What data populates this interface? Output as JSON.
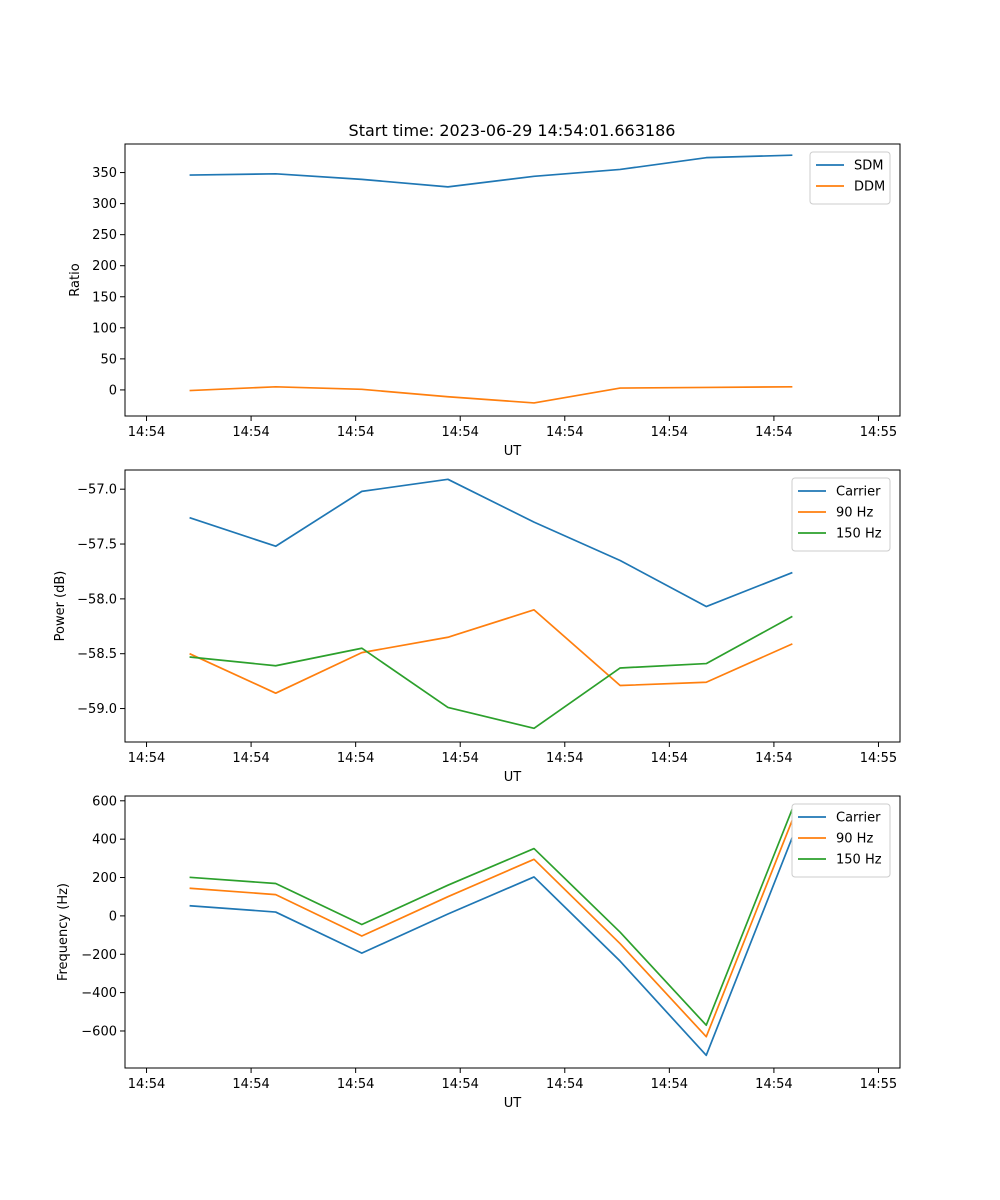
{
  "figure": {
    "title": "Start time: 2023-06-29 14:54:01.663186"
  },
  "chart_data": [
    {
      "type": "line",
      "title": "Start time: 2023-06-29 14:54:01.663186",
      "xlabel": "UT",
      "ylabel": "Ratio",
      "x_tick_labels": [
        "14:54",
        "14:54",
        "14:54",
        "14:54",
        "14:54",
        "14:54",
        "14:54",
        "14:55"
      ],
      "x": [
        1,
        2,
        3,
        4,
        5,
        6,
        7,
        8
      ],
      "xlim": [
        0.25,
        9.25
      ],
      "ylim": [
        -42,
        396
      ],
      "y_ticks": [
        0,
        50,
        100,
        150,
        200,
        250,
        300,
        350
      ],
      "legend_position": "upper right",
      "series": [
        {
          "name": "SDM",
          "color": "#1f77b4",
          "values": [
            346,
            348,
            339,
            327,
            344,
            355,
            374,
            378
          ]
        },
        {
          "name": "DDM",
          "color": "#ff7f0e",
          "values": [
            -1,
            5,
            1,
            -11,
            -21,
            3,
            4,
            5
          ]
        }
      ]
    },
    {
      "type": "line",
      "title": "",
      "xlabel": "UT",
      "ylabel": "Power (dB)",
      "x_tick_labels": [
        "14:54",
        "14:54",
        "14:54",
        "14:54",
        "14:54",
        "14:54",
        "14:54",
        "14:55"
      ],
      "x": [
        1,
        2,
        3,
        4,
        5,
        6,
        7,
        8
      ],
      "xlim": [
        0.25,
        9.25
      ],
      "ylim": [
        -59.305,
        -56.825
      ],
      "y_ticks": [
        -59.0,
        -58.5,
        -58.0,
        -57.5,
        -57.0
      ],
      "y_tick_labels": [
        "−59.0",
        "−58.5",
        "−58.0",
        "−57.5",
        "−57.0"
      ],
      "legend_position": "upper right",
      "series": [
        {
          "name": "Carrier",
          "color": "#1f77b4",
          "values": [
            -57.26,
            -57.52,
            -57.02,
            -56.91,
            -57.3,
            -57.65,
            -58.07,
            -57.76
          ]
        },
        {
          "name": "90 Hz",
          "color": "#ff7f0e",
          "values": [
            -58.5,
            -58.86,
            -58.49,
            -58.35,
            -58.1,
            -58.79,
            -58.76,
            -58.41
          ]
        },
        {
          "name": "150 Hz",
          "color": "#2ca02c",
          "values": [
            -58.53,
            -58.61,
            -58.45,
            -58.99,
            -59.18,
            -58.63,
            -58.59,
            -58.16
          ]
        }
      ]
    },
    {
      "type": "line",
      "title": "",
      "xlabel": "UT",
      "ylabel": "Frequency (Hz)",
      "x_tick_labels": [
        "14:54",
        "14:54",
        "14:54",
        "14:54",
        "14:54",
        "14:54",
        "14:54",
        "14:55"
      ],
      "x": [
        1,
        2,
        3,
        4,
        5,
        6,
        7,
        8
      ],
      "xlim": [
        0.25,
        9.25
      ],
      "ylim": [
        -793,
        625
      ],
      "y_ticks": [
        -600,
        -400,
        -200,
        0,
        200,
        400,
        600
      ],
      "y_tick_labels": [
        "−600",
        "−400",
        "−200",
        "0",
        "200",
        "400",
        "600"
      ],
      "legend_position": "upper right",
      "series": [
        {
          "name": "Carrier",
          "color": "#1f77b4",
          "values": [
            53,
            20,
            -194,
            10,
            203,
            -236,
            -727,
            410
          ]
        },
        {
          "name": "90 Hz",
          "color": "#ff7f0e",
          "values": [
            144,
            111,
            -105,
            100,
            295,
            -145,
            -630,
            500
          ]
        },
        {
          "name": "150 Hz",
          "color": "#2ca02c",
          "values": [
            201,
            169,
            -45,
            160,
            351,
            -85,
            -570,
            558
          ]
        }
      ]
    }
  ]
}
